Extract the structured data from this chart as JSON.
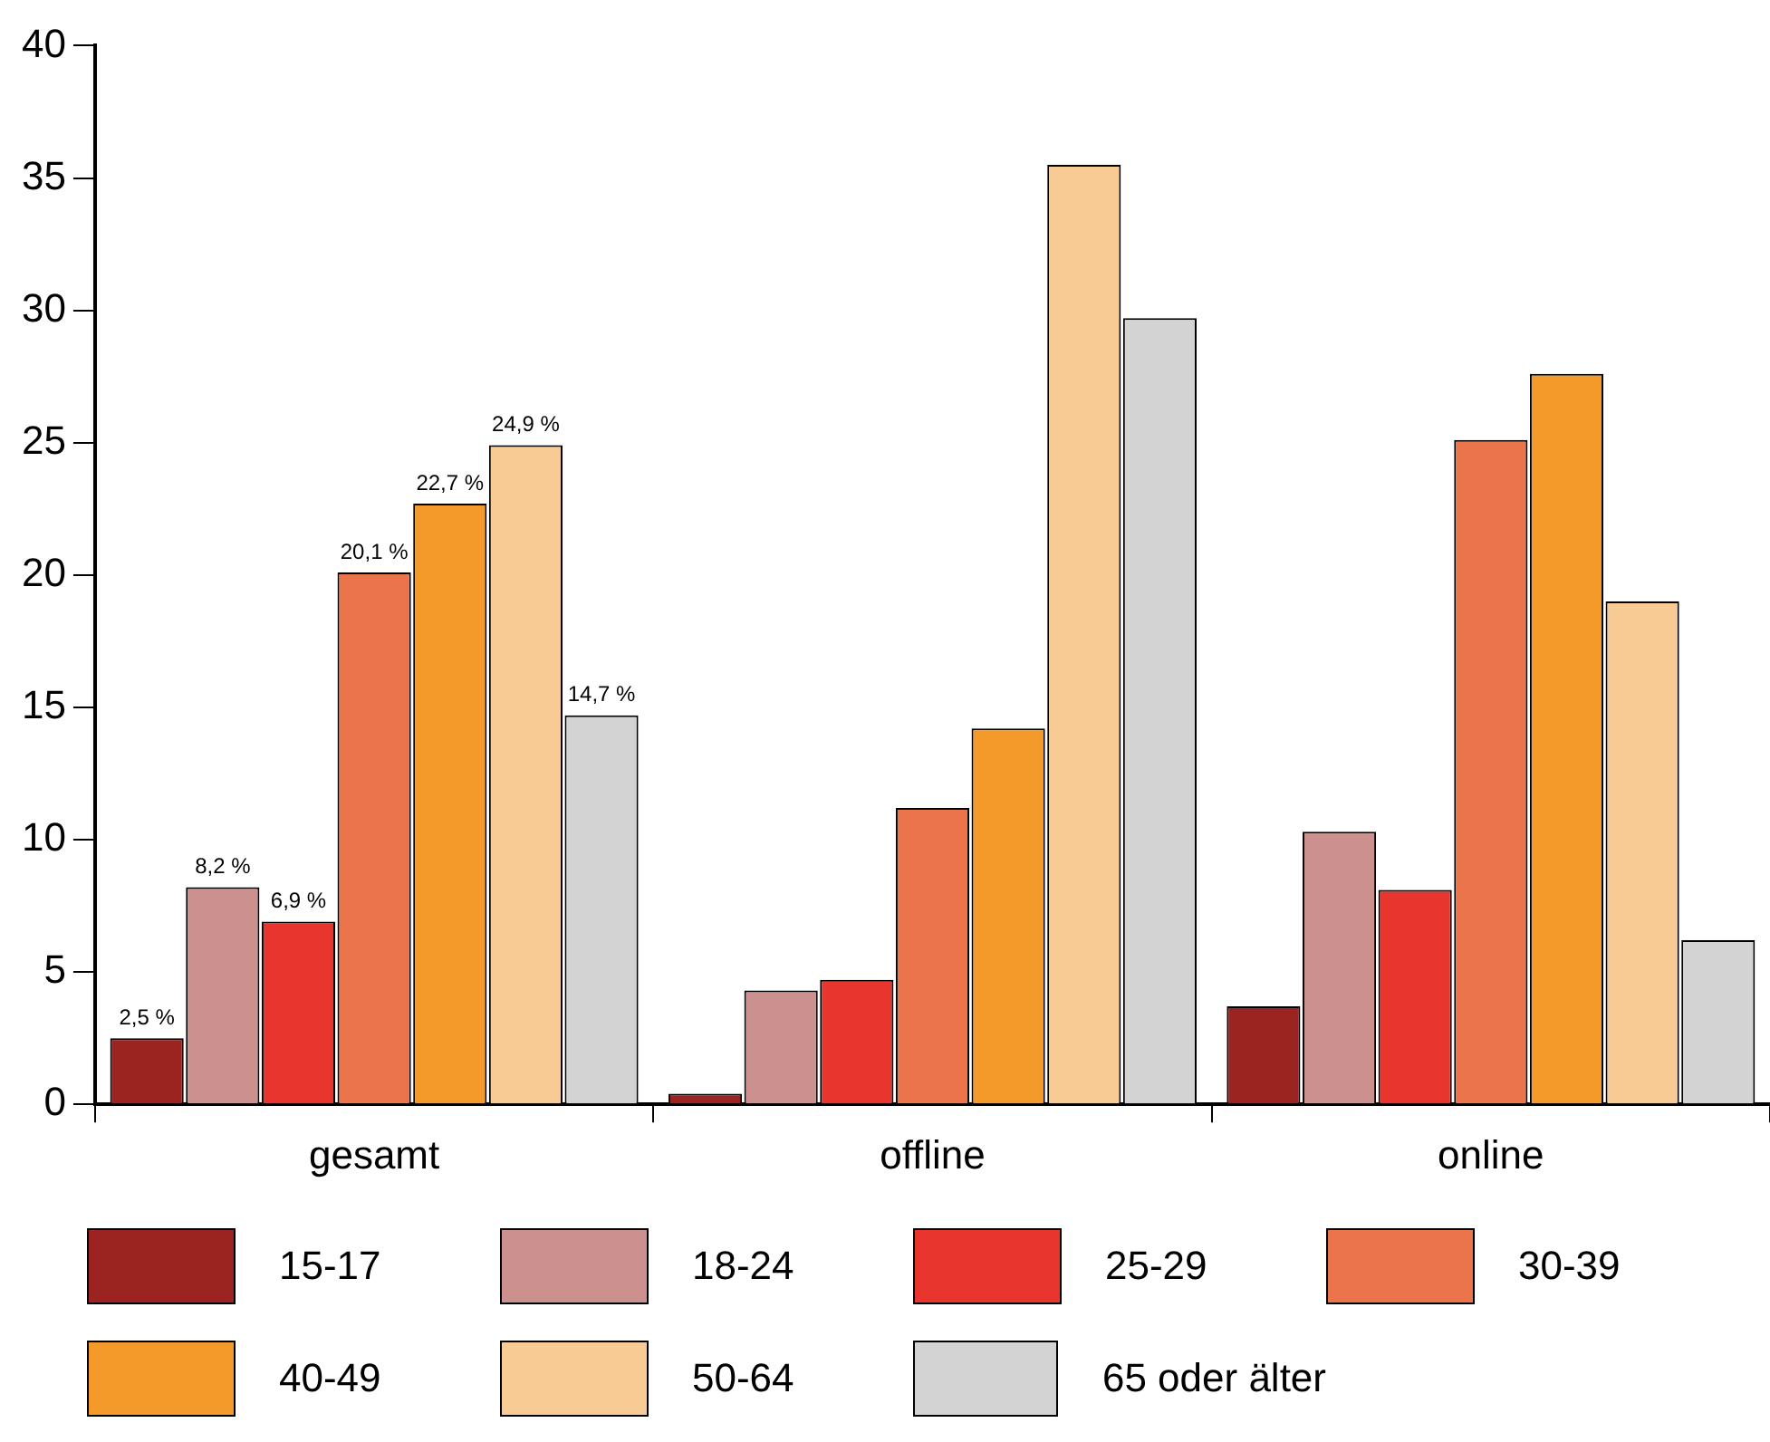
{
  "chart_data": {
    "type": "bar",
    "categories": [
      "gesamt",
      "offline",
      "online"
    ],
    "series": [
      {
        "name": "15-17",
        "color": "#9b2320",
        "values": [
          2.5,
          0.4,
          3.7
        ],
        "value_labels": [
          "2,5 %",
          null,
          null
        ]
      },
      {
        "name": "18-24",
        "color": "#cc908e",
        "values": [
          8.2,
          4.3,
          10.3
        ],
        "value_labels": [
          "8,2 %",
          null,
          null
        ]
      },
      {
        "name": "25-29",
        "color": "#e8352d",
        "values": [
          6.9,
          4.7,
          8.1
        ],
        "value_labels": [
          "6,9 %",
          null,
          null
        ]
      },
      {
        "name": "30-39",
        "color": "#ec744b",
        "values": [
          20.1,
          11.2,
          25.1
        ],
        "value_labels": [
          "20,1 %",
          null,
          null
        ]
      },
      {
        "name": "40-49",
        "color": "#f39a2a",
        "values": [
          22.7,
          14.2,
          27.6
        ],
        "value_labels": [
          "22,7 %",
          null,
          null
        ]
      },
      {
        "name": "50-64",
        "color": "#f8cb94",
        "values": [
          24.9,
          35.5,
          19.0
        ],
        "value_labels": [
          "24,9 %",
          null,
          null
        ]
      },
      {
        "name": "65 oder älter",
        "color": "#d3d3d3",
        "values": [
          14.7,
          29.7,
          6.2
        ],
        "value_labels": [
          "14,7 %",
          null,
          null
        ]
      }
    ],
    "ylim": [
      0,
      40
    ],
    "yticks": [
      0,
      5,
      10,
      15,
      20,
      25,
      30,
      35,
      40
    ],
    "grid": false,
    "legend": "bottom"
  }
}
